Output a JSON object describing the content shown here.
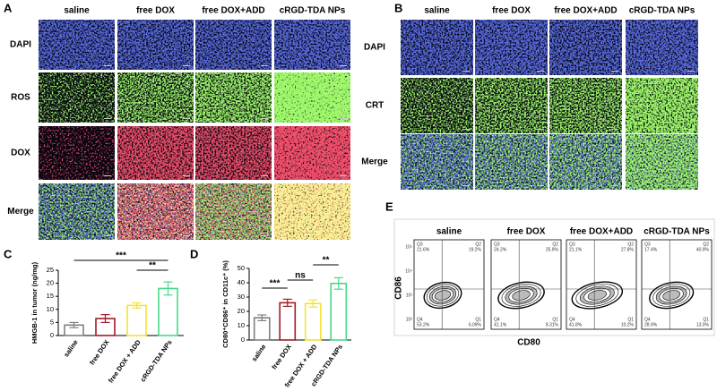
{
  "panel_a": {
    "label": "A",
    "columns": [
      "saline",
      "free DOX",
      "free DOX+ADD",
      "cRGD-TDA  NPs"
    ],
    "rows": [
      "DAPI",
      "ROS",
      "DOX",
      "Merge"
    ]
  },
  "panel_b": {
    "label": "B",
    "columns": [
      "saline",
      "free DOX",
      "free DOX+ADD",
      "cRGD-TDA  NPs"
    ],
    "rows": [
      "DAPI",
      "CRT",
      "Merge"
    ]
  },
  "chart_data": [
    {
      "type": "bar",
      "label": "C",
      "ylabel": "HMGB-1 in tumor (ng/mg)",
      "categories": [
        "saline",
        "free DOX",
        "free DOX + ADD",
        "cRGD-TDA NPs"
      ],
      "values": [
        4,
        6.5,
        11.5,
        18
      ],
      "errors": [
        1,
        1.5,
        1,
        2.5
      ],
      "colors": [
        "#808080",
        "#a01c28",
        "#f2e33a",
        "#46d98a"
      ],
      "ylim": [
        0,
        25
      ],
      "yticks": [
        0,
        5,
        10,
        15,
        20,
        25
      ],
      "annotations": [
        "***",
        "**"
      ]
    },
    {
      "type": "bar",
      "label": "D",
      "ylabel": "CD80⁺CD86⁺ in CD11c⁺ (%)",
      "categories": [
        "saline",
        "free DOX",
        "free DOX + ADD",
        "cRGD-TDA NPs"
      ],
      "values": [
        15.5,
        26,
        25.5,
        39.5
      ],
      "errors": [
        2,
        2.5,
        2.5,
        4
      ],
      "colors": [
        "#808080",
        "#a01c28",
        "#f2e33a",
        "#46d98a"
      ],
      "ylim": [
        0,
        50
      ],
      "yticks": [
        0,
        10,
        20,
        30,
        40,
        50
      ],
      "annotations": [
        "***",
        "ns",
        "**"
      ]
    }
  ],
  "panel_e": {
    "label": "E",
    "x_label": "CD80",
    "y_label": "CD86",
    "y_tick_labels": [
      "10⁵",
      "10⁴",
      "10³",
      "10²"
    ],
    "plots": [
      {
        "title": "saline",
        "quadrants": [
          {
            "name": "Q3",
            "value": "21.6%"
          },
          {
            "name": "Q2",
            "value": "19.2%"
          },
          {
            "name": "Q4",
            "value": "53.2%"
          },
          {
            "name": "Q1",
            "value": "6.09%"
          }
        ]
      },
      {
        "title": "free DOX",
        "quadrants": [
          {
            "name": "Q3",
            "value": "24.2%"
          },
          {
            "name": "Q2",
            "value": "25.9%"
          },
          {
            "name": "Q4",
            "value": "41.1%"
          },
          {
            "name": "Q1",
            "value": "8.31%"
          }
        ]
      },
      {
        "title": "free DOX+ADD",
        "quadrants": [
          {
            "name": "Q3",
            "value": "21.1%"
          },
          {
            "name": "Q2",
            "value": "27.8%"
          },
          {
            "name": "Q4",
            "value": "41.8%"
          },
          {
            "name": "Q1",
            "value": "10.2%"
          }
        ]
      },
      {
        "title": "cRGD-TDA NPs",
        "quadrants": [
          {
            "name": "Q3",
            "value": "17.4%"
          },
          {
            "name": "Q2",
            "value": "40.9%"
          },
          {
            "name": "Q4",
            "value": "28.9%"
          },
          {
            "name": "Q1",
            "value": "13.0%"
          }
        ]
      }
    ]
  }
}
